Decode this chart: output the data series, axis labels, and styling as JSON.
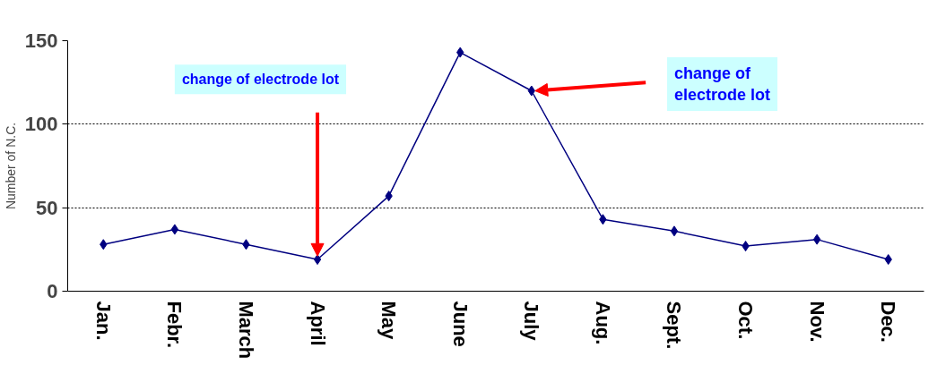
{
  "chart_data": {
    "type": "line",
    "ylabel": "Number of N.C.",
    "categories": [
      "Jan.",
      "Febr.",
      "March",
      "April",
      "May",
      "June",
      "July",
      "Aug.",
      "Sept.",
      "Oct.",
      "Nov.",
      "Dec."
    ],
    "series": [
      {
        "color": "#000080",
        "values": [
          28,
          37,
          28,
          19,
          57,
          143,
          120,
          43,
          36,
          27,
          31,
          19
        ]
      }
    ],
    "ylim": [
      0,
      150
    ],
    "yticks": [
      0,
      50,
      100,
      150
    ],
    "grid": "y",
    "marker": "diamond",
    "line_style": "solid",
    "annotations": [
      "change of electrode lot",
      "change of electrode lot"
    ]
  }
}
